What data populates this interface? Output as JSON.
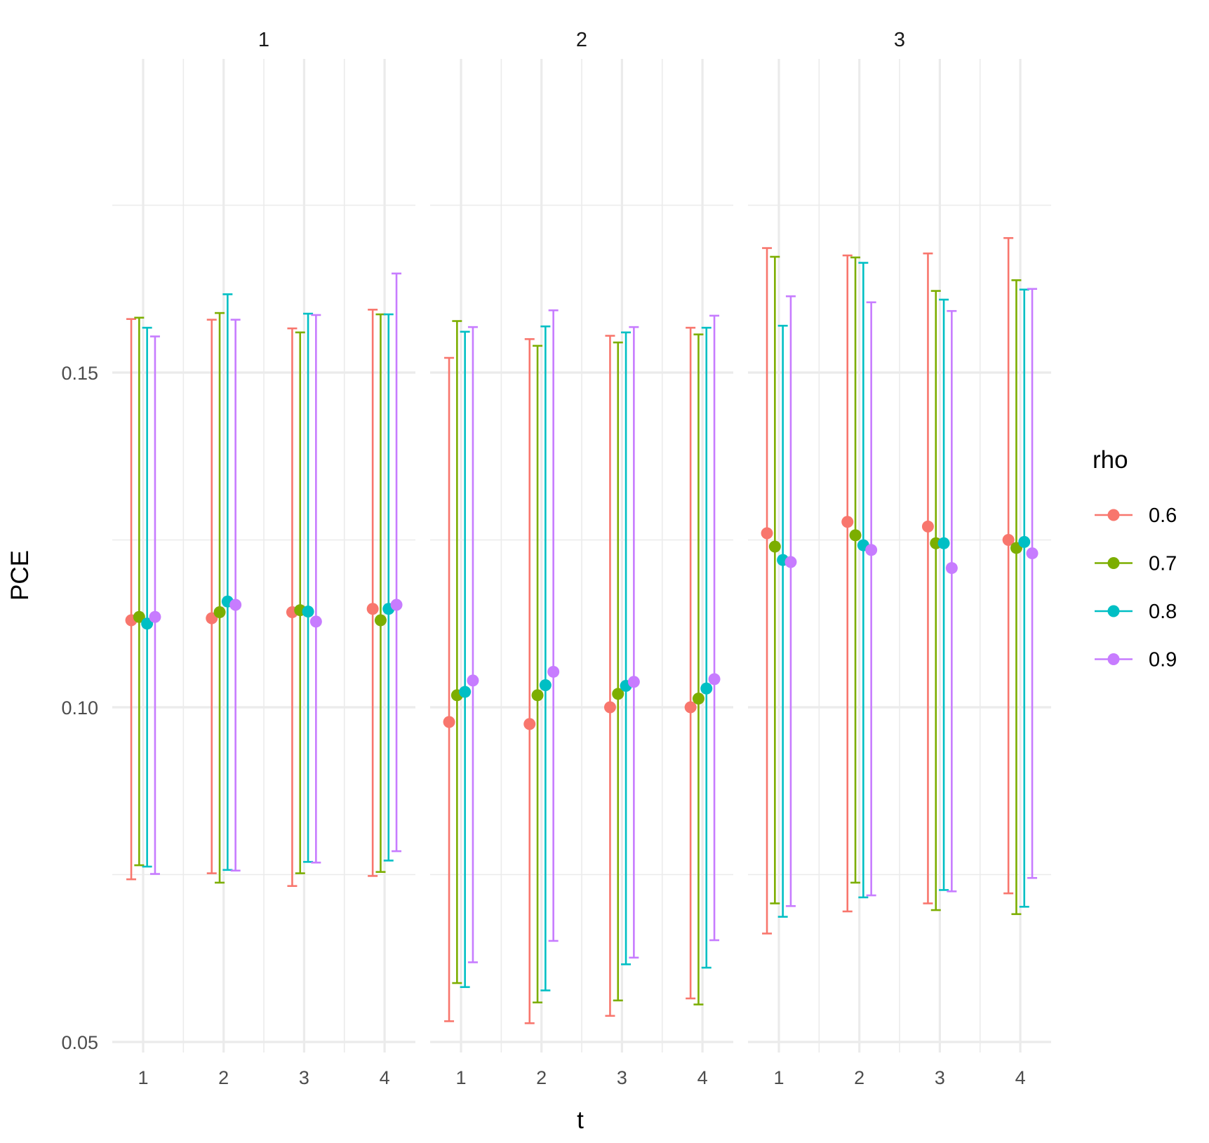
{
  "chart_data": {
    "type": "scatter",
    "subtype": "point-with-errorbars, faceted",
    "facets": [
      "1",
      "2",
      "3"
    ],
    "x_categories": [
      "1",
      "2",
      "3",
      "4"
    ],
    "xlabel": "t",
    "ylabel": "PCE",
    "ylim": [
      0.05,
      0.1725
    ],
    "y_ticks": [
      0.05,
      0.1,
      0.15
    ],
    "y_tick_labels": [
      "0.05",
      "0.10",
      "0.15"
    ],
    "grid": "major and minor",
    "legend": {
      "title": "rho",
      "position": "right"
    },
    "series": [
      {
        "name": "0.6",
        "color": "#F8766D",
        "facets": [
          {
            "y": [
              0.113,
              0.1133,
              0.1142,
              0.1147
            ],
            "ymin": [
              0.0743,
              0.0752,
              0.0733,
              0.0748
            ],
            "ymax": [
              0.158,
              0.1579,
              0.1566,
              0.1594
            ]
          },
          {
            "y": [
              0.0978,
              0.0975,
              0.1,
              0.1
            ],
            "ymin": [
              0.0531,
              0.0528,
              0.0539,
              0.0565
            ],
            "ymax": [
              0.1522,
              0.155,
              0.1555,
              0.1567
            ]
          },
          {
            "y": [
              0.126,
              0.1277,
              0.127,
              0.125
            ],
            "ymin": [
              0.0662,
              0.0695,
              0.0707,
              0.0722
            ],
            "ymax": [
              0.1686,
              0.1675,
              0.1678,
              0.1701
            ]
          }
        ]
      },
      {
        "name": "0.7",
        "color": "#7CAE00",
        "facets": [
          {
            "y": [
              0.1135,
              0.1142,
              0.1145,
              0.113
            ],
            "ymin": [
              0.0764,
              0.0738,
              0.0752,
              0.0754
            ],
            "ymax": [
              0.1582,
              0.1589,
              0.156,
              0.1587
            ]
          },
          {
            "y": [
              0.1018,
              0.1018,
              0.102,
              0.1013
            ],
            "ymin": [
              0.0588,
              0.0559,
              0.0562,
              0.0556
            ],
            "ymax": [
              0.1577,
              0.154,
              0.1545,
              0.1557
            ]
          },
          {
            "y": [
              0.124,
              0.1257,
              0.1245,
              0.1238
            ],
            "ymin": [
              0.0707,
              0.0738,
              0.0697,
              0.0691
            ],
            "ymax": [
              0.1673,
              0.1672,
              0.1622,
              0.1638
            ]
          }
        ]
      },
      {
        "name": "0.8",
        "color": "#00BFC4",
        "facets": [
          {
            "y": [
              0.1125,
              0.1158,
              0.1143,
              0.1147
            ],
            "ymin": [
              0.0762,
              0.0757,
              0.0769,
              0.0771
            ],
            "ymax": [
              0.1567,
              0.1617,
              0.1588,
              0.1587
            ]
          },
          {
            "y": [
              0.1023,
              0.1033,
              0.1032,
              0.1028
            ],
            "ymin": [
              0.0582,
              0.0577,
              0.0616,
              0.0611
            ],
            "ymax": [
              0.1561,
              0.1569,
              0.156,
              0.1567
            ]
          },
          {
            "y": [
              0.122,
              0.1242,
              0.1245,
              0.1247
            ],
            "ymin": [
              0.0687,
              0.0716,
              0.0727,
              0.0702
            ],
            "ymax": [
              0.157,
              0.1664,
              0.1609,
              0.1624
            ]
          }
        ]
      },
      {
        "name": "0.9",
        "color": "#C77CFF",
        "facets": [
          {
            "y": [
              0.1135,
              0.1153,
              0.1128,
              0.1153
            ],
            "ymin": [
              0.0751,
              0.0756,
              0.0768,
              0.0785
            ],
            "ymax": [
              0.1554,
              0.1579,
              0.1586,
              0.1648
            ]
          },
          {
            "y": [
              0.104,
              0.1053,
              0.1038,
              0.1042
            ],
            "ymin": [
              0.0619,
              0.0651,
              0.0626,
              0.0652
            ],
            "ymax": [
              0.1568,
              0.1593,
              0.1568,
              0.1585
            ]
          },
          {
            "y": [
              0.1217,
              0.1235,
              0.1208,
              0.123
            ],
            "ymin": [
              0.0703,
              0.0719,
              0.0725,
              0.0745
            ],
            "ymax": [
              0.1614,
              0.1605,
              0.1592,
              0.1625
            ]
          }
        ]
      }
    ]
  }
}
